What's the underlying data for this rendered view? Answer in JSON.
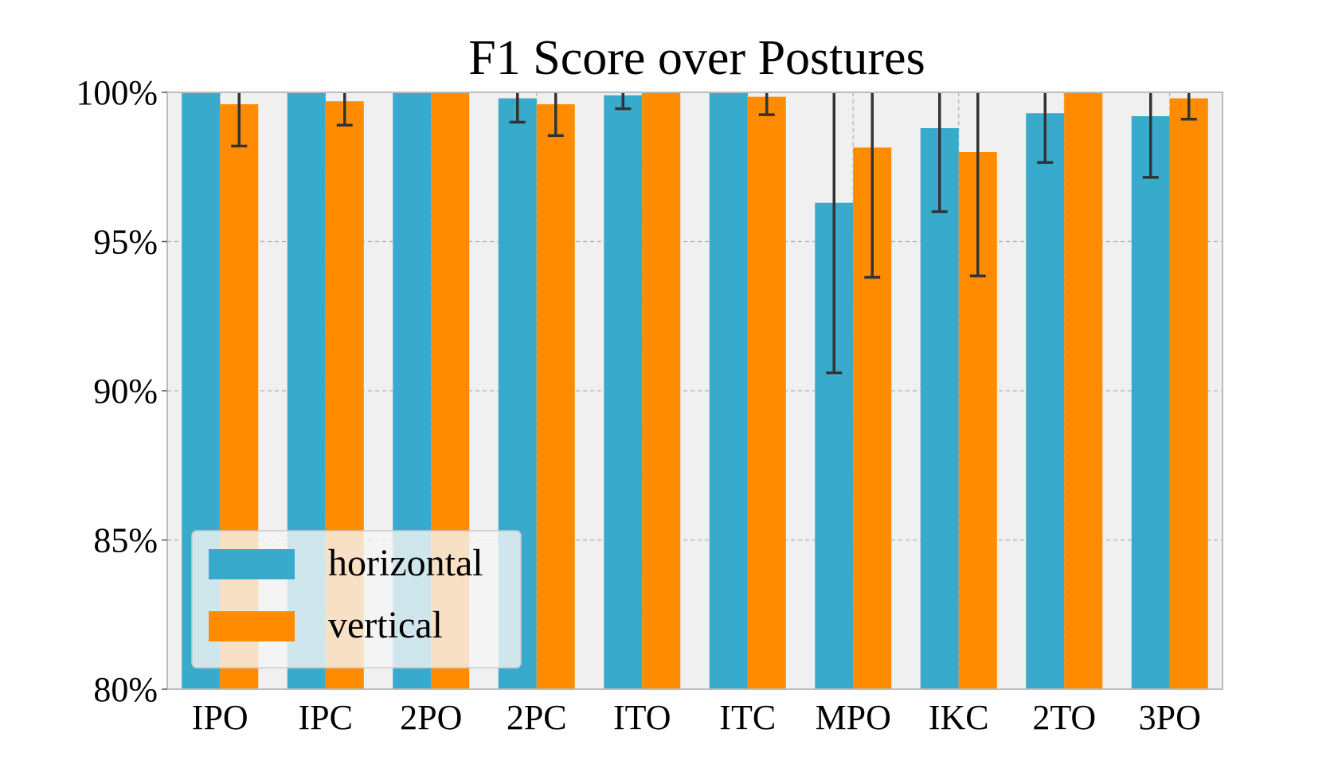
{
  "chart_data": {
    "type": "bar",
    "title": "F1 Score over Postures",
    "xlabel": "",
    "ylabel": "",
    "categories": [
      "IPO",
      "IPC",
      "2PO",
      "2PC",
      "ITO",
      "ITC",
      "MPO",
      "IKC",
      "2TO",
      "3PO"
    ],
    "ylim": [
      80,
      100
    ],
    "yticks": [
      80,
      85,
      90,
      95,
      100
    ],
    "ytick_suffix": "%",
    "grid": true,
    "legend_position": "lower-left",
    "series": [
      {
        "name": "horizontal",
        "color": "#38abcd",
        "values": [
          100.0,
          100.0,
          100.0,
          99.8,
          99.9,
          100.0,
          96.3,
          98.8,
          99.3,
          99.2
        ],
        "errors": [
          0.0,
          0.0,
          0.0,
          0.8,
          0.45,
          0.0,
          5.7,
          2.8,
          1.65,
          2.05
        ]
      },
      {
        "name": "vertical",
        "color": "#ff8c00",
        "values": [
          99.6,
          99.7,
          100.0,
          99.6,
          100.0,
          99.85,
          98.15,
          98.0,
          100.0,
          99.8
        ],
        "errors": [
          1.4,
          0.8,
          0.0,
          1.05,
          0.0,
          0.6,
          4.35,
          4.15,
          0.0,
          0.7
        ]
      }
    ]
  }
}
